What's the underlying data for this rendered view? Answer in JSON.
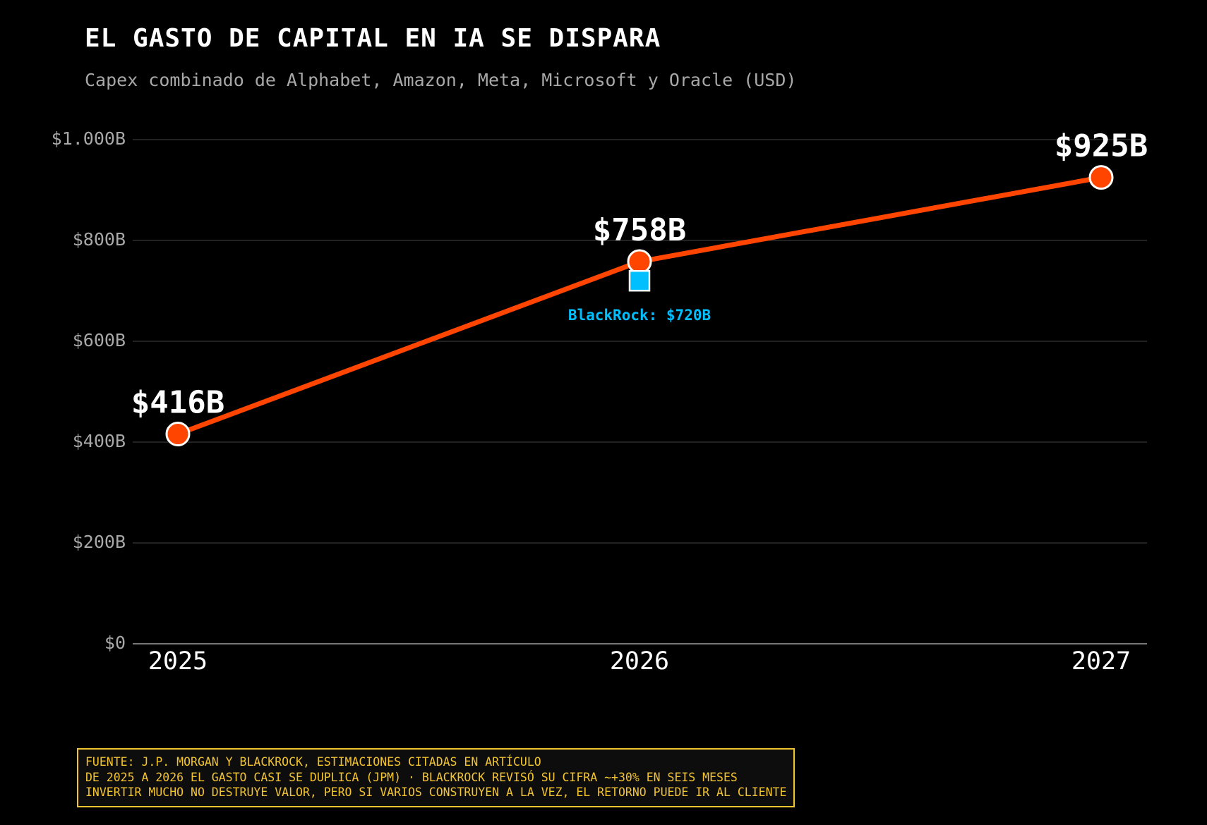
{
  "title": "EL GASTO DE CAPITAL EN IA SE DISPARA",
  "subtitle": "Capex combinado de Alphabet, Amazon, Meta, Microsoft y Oracle (USD)",
  "colors": {
    "background": "#000000",
    "line": "#ff4500",
    "point_stroke": "#ffffff",
    "annotation": "#00bfff",
    "footer_accent": "#f4c430",
    "grid": "#2e2e2e",
    "axis_text": "#a8a8a8"
  },
  "chart_data": {
    "type": "line",
    "categories": [
      "2025",
      "2026",
      "2027"
    ],
    "series": [
      {
        "values": [
          416,
          758,
          925
        ],
        "data_labels": [
          "$416B",
          "$758B",
          "$925B"
        ]
      }
    ],
    "ylim": [
      0,
      1000
    ],
    "yticks": [
      0,
      200,
      400,
      600,
      800,
      1000
    ],
    "ytick_labels": [
      "$0",
      "$200B",
      "$400B",
      "$600B",
      "$800B",
      "$1.000B"
    ],
    "grid": true,
    "annotations": [
      {
        "x": "2026",
        "y": 720,
        "label": "BlackRock: $720B",
        "marker": "square"
      }
    ]
  },
  "footer": {
    "lines": [
      "FUENTE: J.P. MORGAN Y BLACKROCK, ESTIMACIONES CITADAS EN ARTÍCULO",
      "DE 2025 A 2026 EL GASTO CASI SE DUPLICA (JPM) · BLACKROCK REVISÓ SU CIFRA ~+30% EN SEIS MESES",
      "INVERTIR MUCHO NO DESTRUYE VALOR, PERO SI VARIOS CONSTRUYEN A LA VEZ, EL RETORNO PUEDE IR AL CLIENTE"
    ]
  }
}
